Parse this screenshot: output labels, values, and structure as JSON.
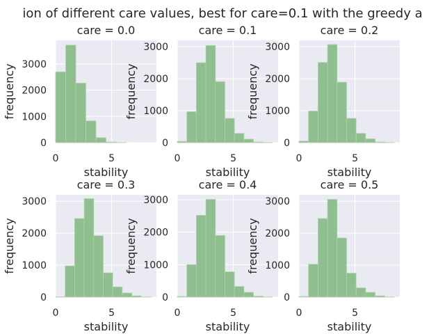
{
  "figure": {
    "suptitle": "ion of different care values, best for care=0.1 with the greedy a"
  },
  "colors": {
    "plot_bg": "#eaeaf2",
    "grid": "#ffffff",
    "bar_fill": "#8fbf8f",
    "bar_edge": "#b2d2b2",
    "text": "#262626"
  },
  "chart_data": [
    {
      "type": "bar",
      "title": "care = 0.0",
      "xlabel": "stability",
      "ylabel": "frequency",
      "xlim": [
        0,
        9
      ],
      "ylim": [
        0,
        3900
      ],
      "xticks": [
        "0",
        "5"
      ],
      "yticks": [
        "0",
        "1000",
        "2000",
        "3000"
      ],
      "bin_edges": [
        0,
        0.9,
        1.8,
        2.7,
        3.6,
        4.5,
        5.4,
        6.3,
        7.2,
        8.1,
        9.0
      ],
      "values": [
        2700,
        3720,
        2270,
        830,
        190,
        25,
        5,
        0,
        0,
        0
      ],
      "grid": true
    },
    {
      "type": "bar",
      "title": "care = 0.1",
      "xlabel": "stability",
      "ylabel": "frequency",
      "xlim": [
        0,
        9
      ],
      "ylim": [
        0,
        3200
      ],
      "xticks": [
        "0",
        "5"
      ],
      "yticks": [
        "0",
        "1000",
        "2000",
        "3000"
      ],
      "bin_edges": [
        0,
        0.85,
        1.7,
        2.55,
        3.4,
        4.25,
        5.1,
        5.95,
        6.8,
        7.65,
        8.5
      ],
      "values": [
        40,
        970,
        2500,
        3040,
        1910,
        760,
        290,
        110,
        20,
        5
      ],
      "grid": true
    },
    {
      "type": "bar",
      "title": "care = 0.2",
      "xlabel": "stability",
      "ylabel": "frequency",
      "xlim": [
        0,
        9
      ],
      "ylim": [
        0,
        3200
      ],
      "xticks": [
        "0",
        "5"
      ],
      "yticks": [
        "0",
        "1000",
        "2000",
        "3000"
      ],
      "bin_edges": [
        0,
        0.85,
        1.7,
        2.55,
        3.4,
        4.25,
        5.1,
        5.95,
        6.8,
        7.65,
        8.5
      ],
      "values": [
        50,
        990,
        2510,
        3070,
        1890,
        760,
        290,
        120,
        20,
        5
      ],
      "grid": true
    },
    {
      "type": "bar",
      "title": "care = 0.3",
      "xlabel": "stability",
      "ylabel": "frequency",
      "xlim": [
        0,
        9
      ],
      "ylim": [
        0,
        3200
      ],
      "xticks": [
        "0",
        "5"
      ],
      "yticks": [
        "0",
        "1000",
        "2000",
        "3000"
      ],
      "bin_edges": [
        0,
        0.85,
        1.7,
        2.55,
        3.4,
        4.25,
        5.1,
        5.95,
        6.8,
        7.65,
        8.5
      ],
      "values": [
        10,
        980,
        2460,
        3080,
        1920,
        760,
        320,
        130,
        40,
        5
      ],
      "grid": true
    },
    {
      "type": "bar",
      "title": "care = 0.4",
      "xlabel": "stability",
      "ylabel": "frequency",
      "xlim": [
        0,
        9
      ],
      "ylim": [
        0,
        3150
      ],
      "xticks": [
        "0",
        "5"
      ],
      "yticks": [
        "0",
        "1000",
        "2000",
        "3000"
      ],
      "bin_edges": [
        0,
        0.85,
        1.7,
        2.55,
        3.4,
        4.25,
        5.1,
        5.95,
        6.8,
        7.65,
        8.5
      ],
      "values": [
        20,
        1000,
        2520,
        3010,
        1900,
        780,
        330,
        150,
        30,
        5
      ],
      "grid": true
    },
    {
      "type": "bar",
      "title": "care = 0.5",
      "xlabel": "stability",
      "ylabel": "frequency",
      "xlim": [
        0,
        9
      ],
      "ylim": [
        0,
        3200
      ],
      "xticks": [
        "0",
        "5"
      ],
      "yticks": [
        "0",
        "1000",
        "2000",
        "3000"
      ],
      "bin_edges": [
        0,
        0.85,
        1.7,
        2.55,
        3.4,
        4.25,
        5.1,
        5.95,
        6.8,
        7.65,
        8.5
      ],
      "values": [
        20,
        1030,
        2460,
        3060,
        1850,
        750,
        290,
        150,
        40,
        5
      ],
      "grid": true
    }
  ]
}
